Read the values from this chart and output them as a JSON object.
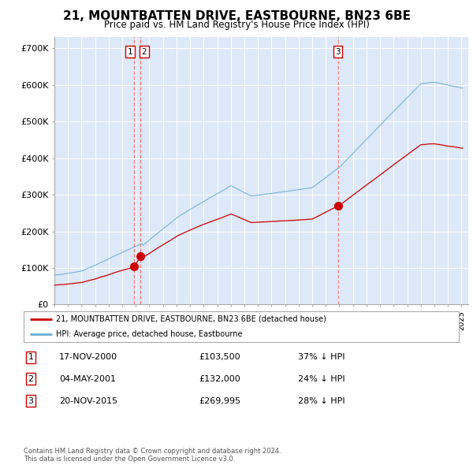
{
  "title": "21, MOUNTBATTEN DRIVE, EASTBOURNE, BN23 6BE",
  "subtitle": "Price paid vs. HM Land Registry's House Price Index (HPI)",
  "background_color": "#dde8f8",
  "grid_color": "#c8d8ee",
  "xlim_start": 1995.0,
  "xlim_end": 2025.5,
  "ylim_min": 0,
  "ylim_max": 730000,
  "yticks": [
    0,
    100000,
    200000,
    300000,
    400000,
    500000,
    600000,
    700000
  ],
  "ytick_labels": [
    "£0",
    "£100K",
    "£200K",
    "£300K",
    "£400K",
    "£500K",
    "£600K",
    "£700K"
  ],
  "hpi_color": "#6baed6",
  "price_color": "#cc0000",
  "sale1_date_num": 2000.88,
  "sale1_price": 103500,
  "sale2_date_num": 2001.34,
  "sale2_price": 132000,
  "sale3_date_num": 2015.89,
  "sale3_price": 269995,
  "vline_color": "#ff6666",
  "legend_label_price": "21, MOUNTBATTEN DRIVE, EASTBOURNE, BN23 6BE (detached house)",
  "legend_label_hpi": "HPI: Average price, detached house, Eastbourne",
  "table_rows": [
    {
      "num": "1",
      "date": "17-NOV-2000",
      "price": "£103,500",
      "change": "37% ↓ HPI"
    },
    {
      "num": "2",
      "date": "04-MAY-2001",
      "price": "£132,000",
      "change": "24% ↓ HPI"
    },
    {
      "num": "3",
      "date": "20-NOV-2015",
      "price": "£269,995",
      "change": "28% ↓ HPI"
    }
  ],
  "footnote": "Contains HM Land Registry data © Crown copyright and database right 2024.\nThis data is licensed under the Open Government Licence v3.0.",
  "marker_size": 7
}
